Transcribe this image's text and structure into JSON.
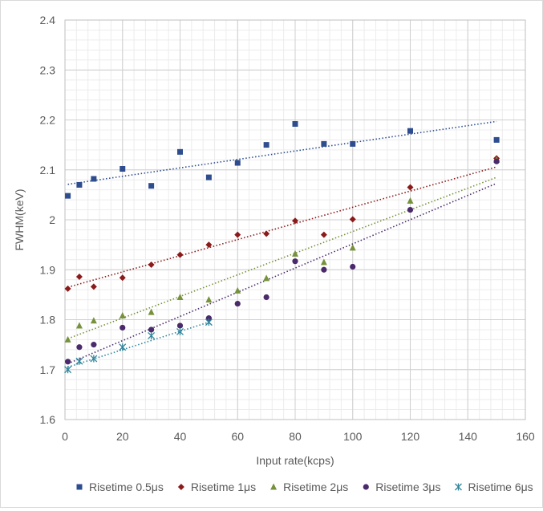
{
  "chart_data": {
    "type": "scatter",
    "xlabel": "Input rate(kcps)",
    "ylabel": "FWHM(keV)",
    "xlim": [
      0,
      160
    ],
    "ylim": [
      1.6,
      2.4
    ],
    "x_ticks": [
      "0",
      "20",
      "40",
      "60",
      "80",
      "100",
      "120",
      "140",
      "160"
    ],
    "y_ticks": [
      "1.6",
      "1.7",
      "1.8",
      "1.9",
      "2",
      "2.1",
      "2.2",
      "2.3",
      "2.4"
    ],
    "grid": "major and minor",
    "legend_position": "bottom",
    "trendlines": "linear, dotted",
    "series": [
      {
        "name": "Risetime 0.5μs",
        "color": "#2e4d8f",
        "marker": "square",
        "x": [
          1,
          5,
          10,
          20,
          30,
          40,
          50,
          60,
          70,
          80,
          90,
          100,
          120,
          150
        ],
        "y": [
          2.048,
          2.07,
          2.082,
          2.102,
          2.068,
          2.136,
          2.085,
          2.114,
          2.15,
          2.192,
          2.152,
          2.152,
          2.178,
          2.16
        ],
        "trend": [
          2.071,
          2.197
        ]
      },
      {
        "name": "Risetime 1μs",
        "color": "#8b1a1a",
        "marker": "diamond",
        "x": [
          1,
          5,
          10,
          20,
          30,
          40,
          50,
          60,
          70,
          80,
          90,
          100,
          120,
          150
        ],
        "y": [
          1.862,
          1.886,
          1.866,
          1.884,
          1.91,
          1.93,
          1.95,
          1.97,
          1.972,
          1.998,
          1.97,
          2.001,
          2.065,
          2.123
        ],
        "trend": [
          1.865,
          2.106
        ]
      },
      {
        "name": "Risetime 2μs",
        "color": "#76923c",
        "marker": "triangle",
        "x": [
          1,
          5,
          10,
          20,
          30,
          40,
          50,
          60,
          70,
          80,
          90,
          100,
          120,
          150
        ],
        "y": [
          1.76,
          1.788,
          1.798,
          1.808,
          1.815,
          1.845,
          1.84,
          1.858,
          1.883,
          1.932,
          1.915,
          1.944,
          2.038,
          2.12
        ],
        "trend": [
          1.762,
          2.085
        ]
      },
      {
        "name": "Risetime 3μs",
        "color": "#4b2a6b",
        "marker": "circle",
        "x": [
          1,
          5,
          10,
          20,
          30,
          40,
          50,
          60,
          70,
          80,
          90,
          100,
          120,
          150
        ],
        "y": [
          1.716,
          1.745,
          1.75,
          1.784,
          1.78,
          1.788,
          1.803,
          1.832,
          1.845,
          1.917,
          1.9,
          1.906,
          2.02,
          2.117
        ],
        "trend": [
          1.712,
          2.073
        ]
      },
      {
        "name": "Risetime 6μs",
        "color": "#31859c",
        "marker": "asterisk",
        "x": [
          1,
          5,
          10,
          20,
          30,
          40,
          50
        ],
        "y": [
          1.7,
          1.717,
          1.722,
          1.745,
          1.768,
          1.776,
          1.795
        ],
        "trend": [
          1.705,
          1.795
        ],
        "trend_x": [
          1,
          50
        ]
      }
    ]
  }
}
